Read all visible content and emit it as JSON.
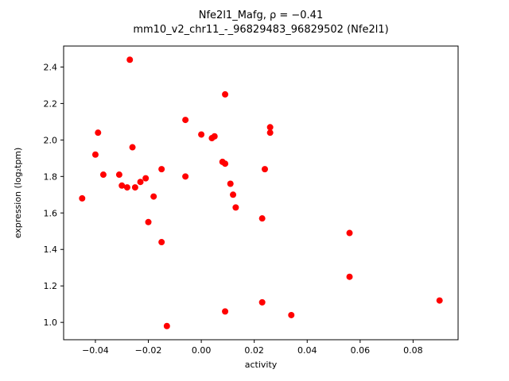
{
  "chart_data": {
    "type": "scatter",
    "title_line1": "Nfe2l1_Mafg, ρ = −0.41",
    "title_line2": "mm10_v2_chr11_-_96829483_96829502 (Nfe2l1)",
    "xlabel": "activity",
    "ylabel": "expression (log₂tpm)",
    "xlim": [
      -0.052,
      0.097
    ],
    "ylim": [
      0.905,
      2.515
    ],
    "x_ticks": [
      -0.04,
      -0.02,
      0.0,
      0.02,
      0.04,
      0.06,
      0.08
    ],
    "x_tick_labels": [
      "−0.04",
      "−0.02",
      "0.00",
      "0.02",
      "0.04",
      "0.06",
      "0.08"
    ],
    "y_ticks": [
      1.0,
      1.2,
      1.4,
      1.6,
      1.8,
      2.0,
      2.2,
      2.4
    ],
    "y_tick_labels": [
      "1.0",
      "1.2",
      "1.4",
      "1.6",
      "1.8",
      "2.0",
      "2.2",
      "2.4"
    ],
    "marker_color": "#ff0000",
    "axis_color": "#000000",
    "grid": "off",
    "legend": "none",
    "points": [
      [
        -0.045,
        1.68
      ],
      [
        -0.04,
        1.92
      ],
      [
        -0.039,
        2.04
      ],
      [
        -0.037,
        1.81
      ],
      [
        -0.031,
        1.81
      ],
      [
        -0.03,
        1.75
      ],
      [
        -0.028,
        1.74
      ],
      [
        -0.027,
        2.44
      ],
      [
        -0.026,
        1.96
      ],
      [
        -0.025,
        1.74
      ],
      [
        -0.023,
        1.77
      ],
      [
        -0.021,
        1.79
      ],
      [
        -0.02,
        1.55
      ],
      [
        -0.018,
        1.69
      ],
      [
        -0.015,
        1.84
      ],
      [
        -0.015,
        1.44
      ],
      [
        -0.013,
        0.98
      ],
      [
        -0.006,
        2.11
      ],
      [
        -0.006,
        1.8
      ],
      [
        0.0,
        2.03
      ],
      [
        0.004,
        2.01
      ],
      [
        0.005,
        2.02
      ],
      [
        0.008,
        1.88
      ],
      [
        0.009,
        1.87
      ],
      [
        0.009,
        2.25
      ],
      [
        0.009,
        1.06
      ],
      [
        0.011,
        1.76
      ],
      [
        0.012,
        1.7
      ],
      [
        0.013,
        1.63
      ],
      [
        0.023,
        1.57
      ],
      [
        0.023,
        1.11
      ],
      [
        0.024,
        1.84
      ],
      [
        0.026,
        2.07
      ],
      [
        0.026,
        2.04
      ],
      [
        0.034,
        1.04
      ],
      [
        0.056,
        1.49
      ],
      [
        0.056,
        1.25
      ],
      [
        0.09,
        1.12
      ]
    ]
  }
}
